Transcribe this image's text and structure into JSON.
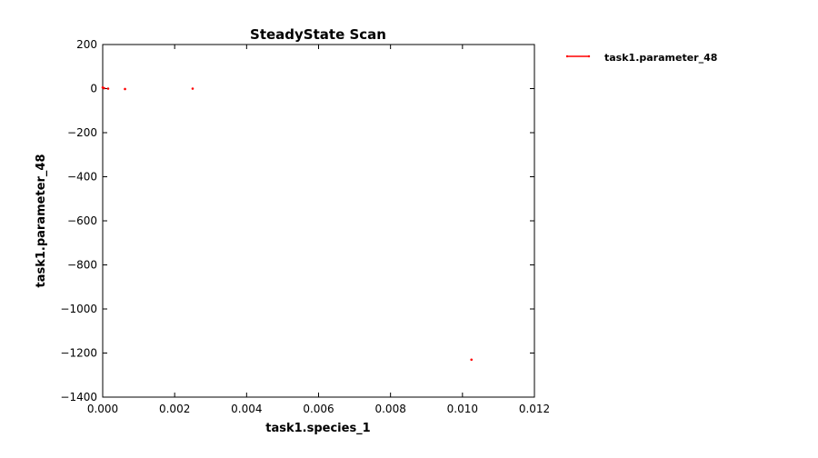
{
  "chart_data": {
    "type": "scatter",
    "title": "SteadyState Scan",
    "xlabel": "task1.species_1",
    "ylabel": "task1.parameter_48",
    "xlim": [
      0.0,
      0.012
    ],
    "ylim": [
      -1400,
      200
    ],
    "x_ticks": [
      0.0,
      0.002,
      0.004,
      0.006,
      0.008,
      0.01,
      0.012
    ],
    "x_tick_labels": [
      "0.000",
      "0.002",
      "0.004",
      "0.006",
      "0.008",
      "0.010",
      "0.012"
    ],
    "y_ticks": [
      200,
      0,
      -200,
      -400,
      -600,
      -800,
      -1000,
      -1200,
      -1400
    ],
    "y_tick_labels": [
      "200",
      "0",
      "−200",
      "−400",
      "−600",
      "−800",
      "−1000",
      "−1200",
      "−1400"
    ],
    "grid": false,
    "legend_position": "outside-top-right",
    "series": [
      {
        "name": "task1.parameter_48",
        "color": "#ff0000",
        "points": [
          {
            "x": 0.0,
            "y": 5
          },
          {
            "x": 4e-05,
            "y": 2
          },
          {
            "x": 0.00015,
            "y": 0
          },
          {
            "x": 0.00062,
            "y": -2
          },
          {
            "x": 0.0025,
            "y": 0
          },
          {
            "x": 0.01025,
            "y": -1230
          }
        ]
      }
    ]
  }
}
